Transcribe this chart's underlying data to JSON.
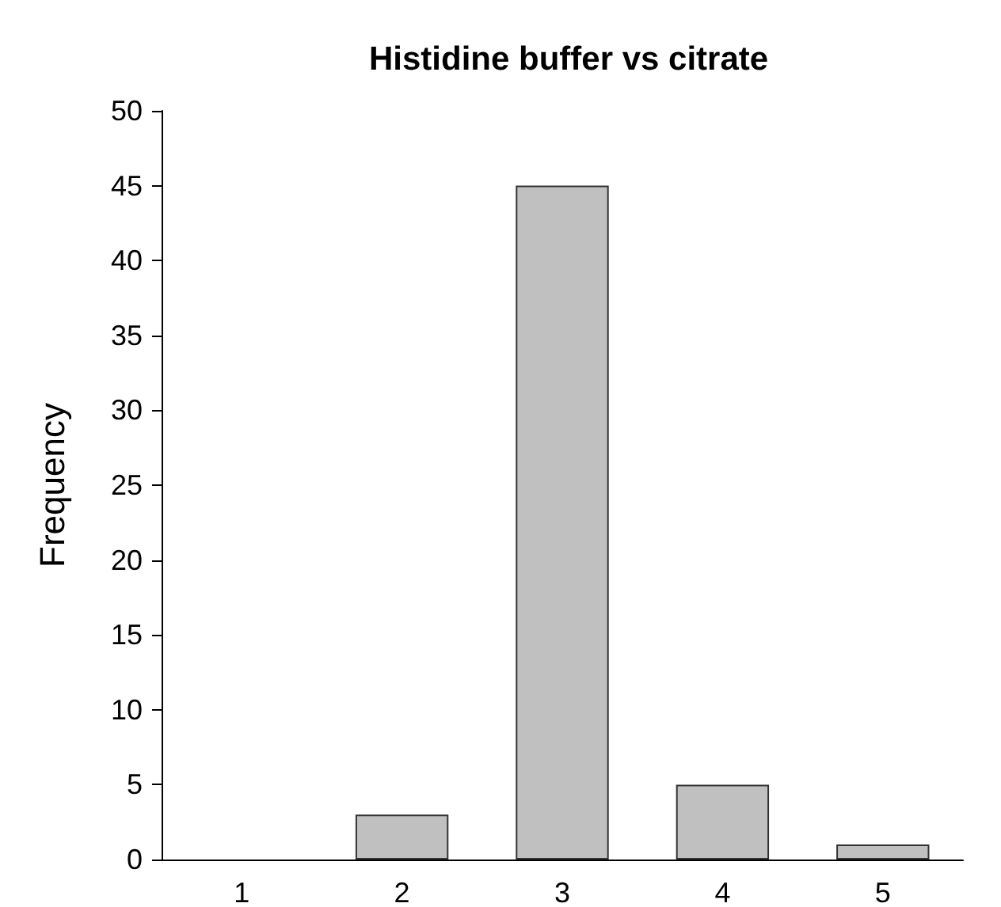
{
  "chart_data": {
    "type": "bar",
    "title": "Histidine buffer vs citrate",
    "ylabel": "Frequency",
    "categories": [
      "1",
      "2",
      "3",
      "4",
      "5"
    ],
    "values": [
      0,
      3,
      45,
      5,
      1
    ],
    "color": "#c0c0c0",
    "ylim": [
      0,
      50
    ],
    "yticks": [
      0,
      5,
      10,
      15,
      20,
      25,
      30,
      35,
      40,
      45,
      50
    ],
    "grid": false
  }
}
